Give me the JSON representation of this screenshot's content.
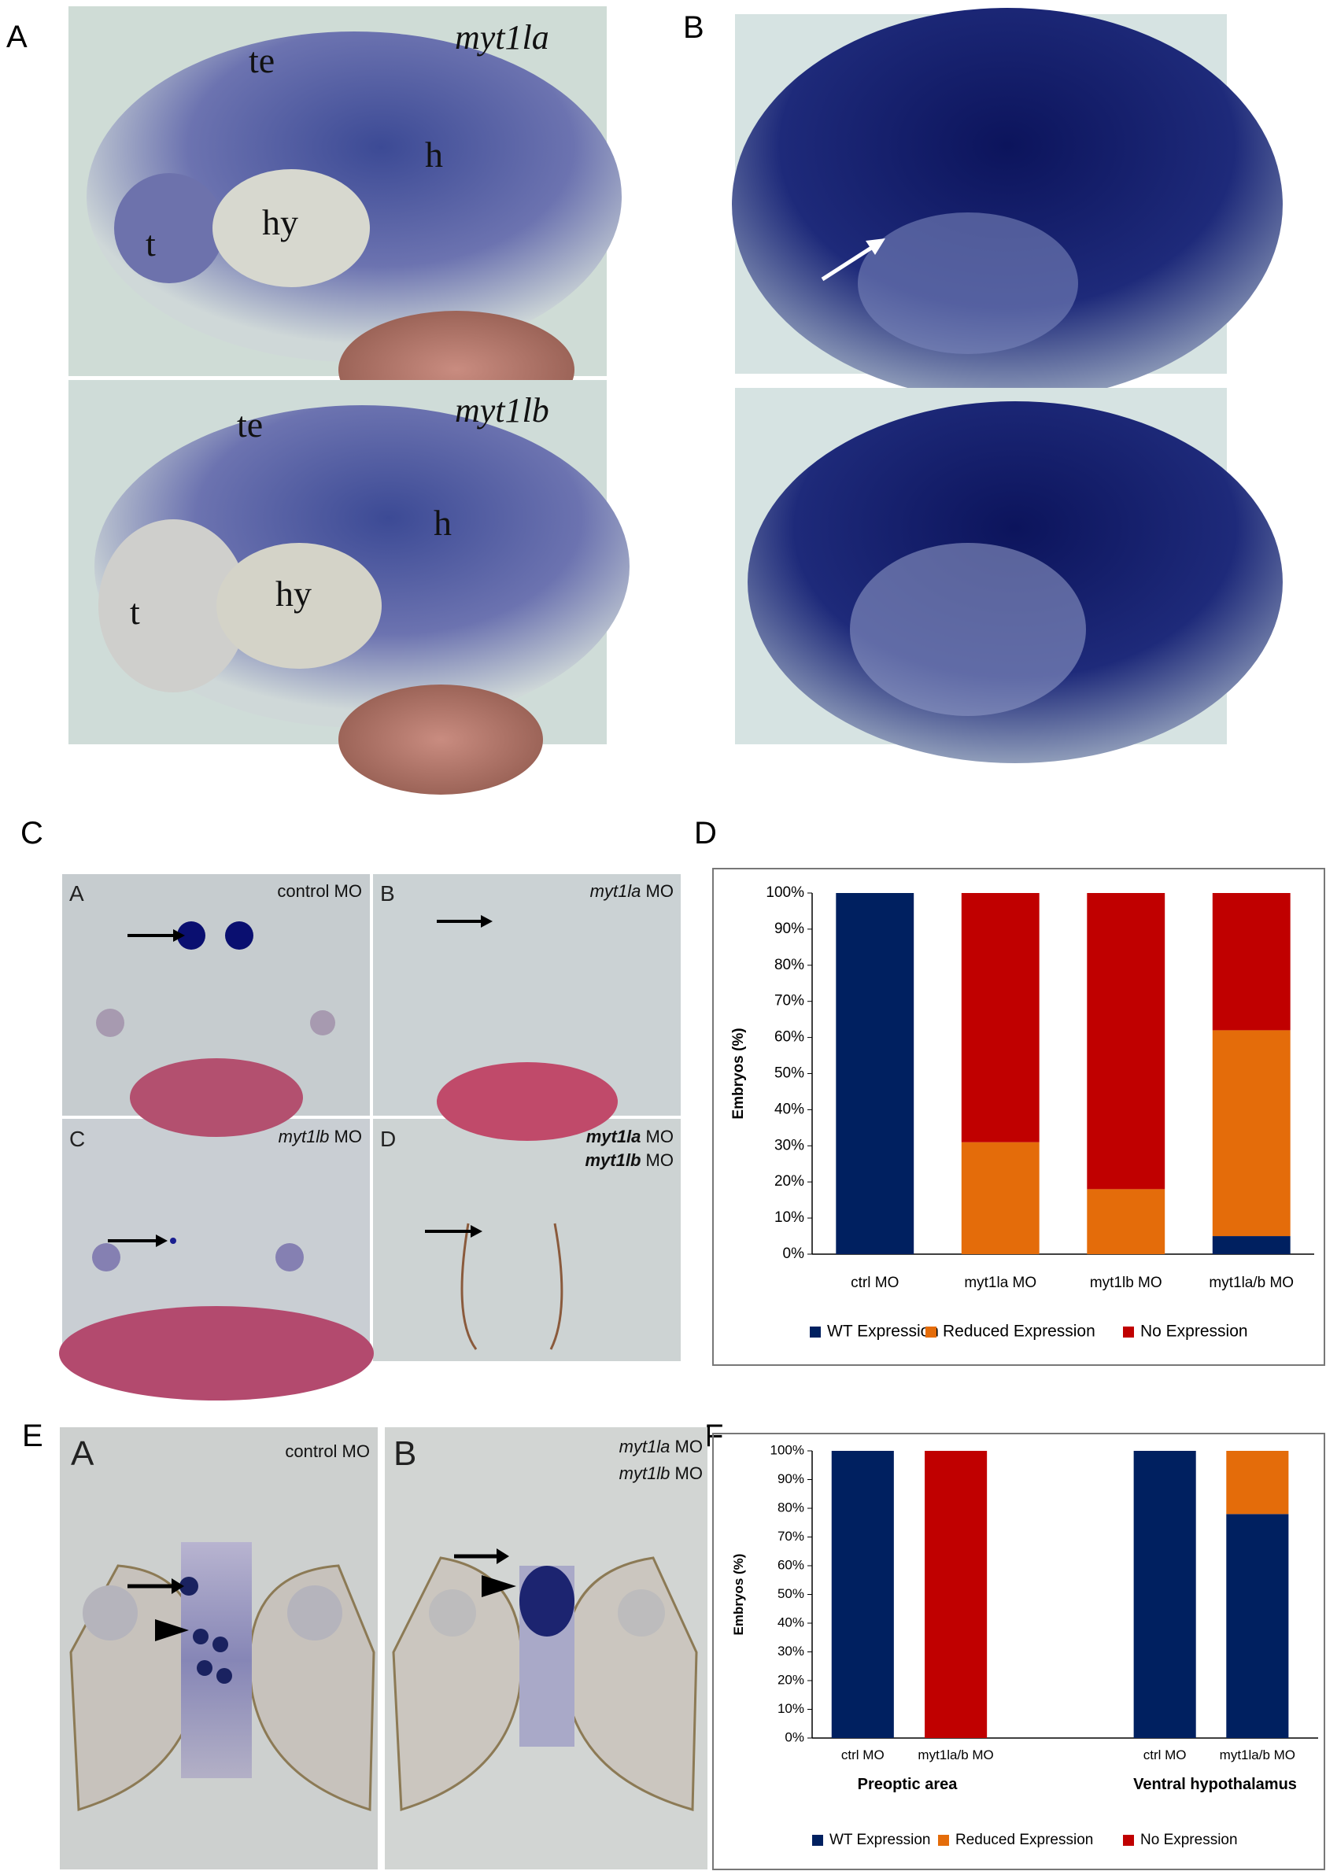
{
  "panel_labels": [
    "A",
    "B",
    "C",
    "D",
    "E",
    "F"
  ],
  "panel_a": {
    "images": [
      {
        "gene": "myt1la",
        "regions": [
          "te",
          "h",
          "t",
          "hy"
        ]
      },
      {
        "gene": "myt1lb",
        "regions": [
          "te",
          "h",
          "t",
          "hy"
        ]
      }
    ]
  },
  "panel_c": {
    "subpanels": [
      {
        "label": "A",
        "lines": [
          {
            "text": "control MO"
          }
        ]
      },
      {
        "label": "B",
        "lines": [
          {
            "gene": "myt1la",
            "text": "MO"
          }
        ]
      },
      {
        "label": "C",
        "lines": [
          {
            "gene": "myt1lb",
            "text": "MO"
          }
        ]
      },
      {
        "label": "D",
        "lines": [
          {
            "gene": "myt1la",
            "text": "MO"
          },
          {
            "gene": "myt1lb",
            "text": "MO"
          }
        ]
      }
    ]
  },
  "panel_e": {
    "subpanels": [
      {
        "label": "A",
        "lines": [
          {
            "text": "control MO"
          }
        ]
      },
      {
        "label": "B",
        "lines": [
          {
            "gene": "myt1la",
            "text": "MO"
          },
          {
            "gene": "myt1lb",
            "text": "MO"
          }
        ]
      }
    ]
  },
  "chart_data": [
    {
      "type": "bar",
      "stacked": true,
      "y_label": "Embryos (%)",
      "categories": [
        "ctrl MO",
        "myt1la MO",
        "myt1lb MO",
        "myt1la/b MO"
      ],
      "series": [
        {
          "name": "WT Expression",
          "color": "#002060",
          "values": [
            100,
            0,
            0,
            5
          ]
        },
        {
          "name": "Reduced Expression",
          "color": "#e46c0a",
          "values": [
            0,
            31,
            18,
            57
          ]
        },
        {
          "name": "No Expression",
          "color": "#c00000",
          "values": [
            0,
            69,
            82,
            38
          ]
        }
      ],
      "ylim": [
        0,
        100
      ],
      "yticks": [
        {
          "value": 0,
          "label": "0%"
        },
        {
          "value": 10,
          "label": "10%"
        },
        {
          "value": 20,
          "label": "20%"
        },
        {
          "value": 30,
          "label": "30%"
        },
        {
          "value": 40,
          "label": "40%"
        },
        {
          "value": 50,
          "label": "50%"
        },
        {
          "value": 60,
          "label": "60%"
        },
        {
          "value": 70,
          "label": "70%"
        },
        {
          "value": 80,
          "label": "80%"
        },
        {
          "value": 90,
          "label": "90%"
        },
        {
          "value": 100,
          "label": "100%"
        }
      ],
      "grid": false,
      "legend": "bottom"
    },
    {
      "type": "bar",
      "stacked": true,
      "y_label": "Embryos (%)",
      "categories": [
        "ctrl MO",
        "myt1la/b MO",
        "ctrl MO",
        "myt1la/b MO"
      ],
      "group_labels": [
        "Preoptic area",
        "Ventral hypothalamus"
      ],
      "series": [
        {
          "name": "WT Expression",
          "color": "#002060",
          "values": [
            100,
            0,
            100,
            78
          ]
        },
        {
          "name": "Reduced Expression",
          "color": "#e46c0a",
          "values": [
            0,
            0,
            0,
            22
          ]
        },
        {
          "name": "No Expression",
          "color": "#c00000",
          "values": [
            0,
            100,
            0,
            0
          ]
        }
      ],
      "ylim": [
        0,
        100
      ],
      "yticks": [
        {
          "value": 0,
          "label": "0%"
        },
        {
          "value": 10,
          "label": "10%"
        },
        {
          "value": 20,
          "label": "20%"
        },
        {
          "value": 30,
          "label": "30%"
        },
        {
          "value": 40,
          "label": "40%"
        },
        {
          "value": 50,
          "label": "50%"
        },
        {
          "value": 60,
          "label": "60%"
        },
        {
          "value": 70,
          "label": "70%"
        },
        {
          "value": 80,
          "label": "80%"
        },
        {
          "value": 90,
          "label": "90%"
        },
        {
          "value": 100,
          "label": "100%"
        }
      ],
      "grid": false,
      "legend": "bottom"
    }
  ]
}
